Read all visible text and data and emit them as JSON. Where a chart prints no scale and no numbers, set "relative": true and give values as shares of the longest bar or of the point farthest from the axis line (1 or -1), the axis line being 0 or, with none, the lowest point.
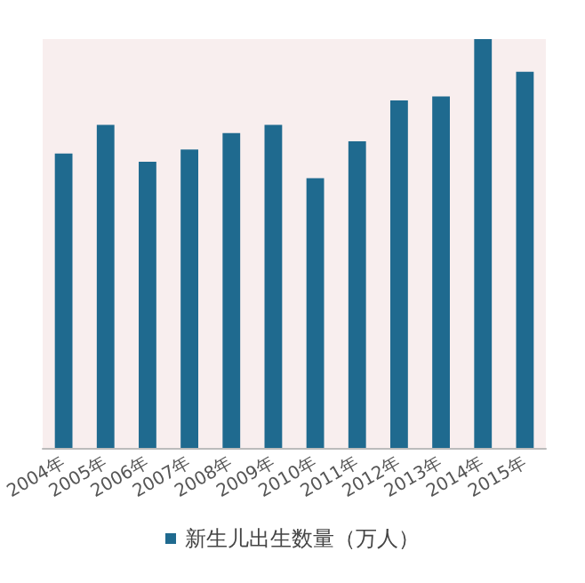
{
  "chart_data": {
    "type": "bar",
    "relative": true,
    "categories": [
      "2004年",
      "2005年",
      "2006年",
      "2007年",
      "2008年",
      "2009年",
      "2010年",
      "2011年",
      "2012年",
      "2013年",
      "2014年",
      "2015年"
    ],
    "series": [
      {
        "name": "新生儿出生数量（万人）",
        "color": "#1f6a8f",
        "values": [
          0.72,
          0.79,
          0.7,
          0.73,
          0.77,
          0.79,
          0.66,
          0.75,
          0.85,
          0.86,
          1,
          0.92
        ]
      }
    ],
    "legend": "bottom"
  }
}
